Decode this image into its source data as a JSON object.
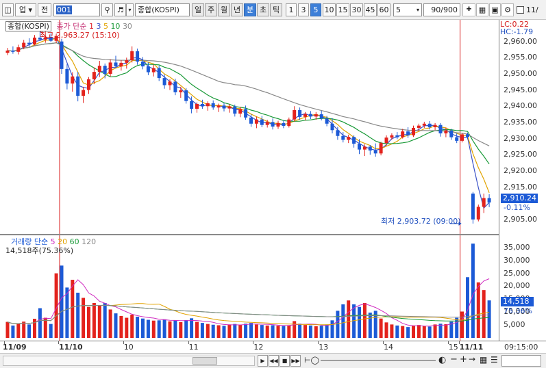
{
  "toolbar": {
    "market": "업",
    "prev_label": "전",
    "code": "001",
    "name": "종합(KOSPI)",
    "periods": [
      "일",
      "주",
      "월",
      "년",
      "분",
      "초",
      "틱"
    ],
    "selected_period": "분",
    "intervals": [
      "1",
      "3",
      "5",
      "10",
      "15",
      "30",
      "45",
      "60"
    ],
    "selected_interval": "5",
    "interval_select": "5",
    "count": "90/900",
    "checkbox_label": "11/"
  },
  "price_legend": {
    "name": "종합(KOSPI)",
    "ma_label": "종가 단순",
    "ma_periods": [
      "1",
      "3",
      "5",
      "10",
      "30"
    ],
    "ma_colors": [
      "#e0222a",
      "#3a51c8",
      "#e1a300",
      "#1a9a38",
      "#888888"
    ]
  },
  "price_annotations": {
    "high_text": "최고 2,963.27 (15:10)",
    "low_text": "최저 2,903.72 (09:00)",
    "lc": "LC:0.22",
    "hc": "HC:-1.79",
    "current_price": "2,910.24",
    "current_change": "-0.11%"
  },
  "volume_legend": {
    "label": "거래량 단순",
    "ma_periods": [
      "5",
      "20",
      "60",
      "120"
    ],
    "ma_colors": [
      "#d02bc0",
      "#e1a300",
      "#1a9a38",
      "#888888"
    ],
    "current_text": "14,518주(75.36%)"
  },
  "volume_annotations": {
    "current_value": "14,518",
    "current_pct": "75.36%"
  },
  "price_axis_labels": [
    "2,960.00",
    "2,955.00",
    "2,950.00",
    "2,945.00",
    "2,940.00",
    "2,935.00",
    "2,930.00",
    "2,925.00",
    "2,920.00",
    "2,915.00",
    "2,905.00"
  ],
  "volume_axis_labels": [
    "35,000",
    "30,000",
    "25,000",
    "20,000",
    "15,000",
    "10,000",
    "5,000"
  ],
  "x_axis": {
    "labels": [
      "11/09",
      "11/10",
      "10",
      "11",
      "12",
      "13",
      "14",
      "15",
      "11/11"
    ],
    "time": "09:15:00"
  },
  "colors": {
    "up": "#e3221c",
    "down": "#1c5ad6",
    "accent": "#3d7fd8",
    "marker_line": "#d81e1e"
  },
  "chart_data": {
    "type": "candlestick",
    "interval_minutes": 5,
    "y_price_range": [
      2903,
      2963
    ],
    "y_volume_range": [
      0,
      37000
    ],
    "dates": [
      "11/09",
      "11/10",
      "11/11"
    ],
    "candles": [
      [
        2956.5,
        2958.0,
        2955.8,
        2957.2,
        6200
      ],
      [
        2957.2,
        2958.5,
        2956.2,
        2956.8,
        4800
      ],
      [
        2956.8,
        2959.0,
        2956.0,
        2958.2,
        5600
      ],
      [
        2958.2,
        2960.5,
        2957.6,
        2959.6,
        6300
      ],
      [
        2959.6,
        2961.0,
        2958.4,
        2959.1,
        5200
      ],
      [
        2959.1,
        2962.0,
        2958.8,
        2961.2,
        7400
      ],
      [
        2961.2,
        2963.27,
        2960.2,
        2960.6,
        11500
      ],
      [
        2960.6,
        2961.8,
        2959.6,
        2961.3,
        7800
      ],
      [
        2961.3,
        2962.5,
        2959.8,
        2960.2,
        5400
      ],
      [
        2960.2,
        2962.4,
        2959.5,
        2961.7,
        25000
      ],
      [
        2960.0,
        2960.8,
        2950.0,
        2951.5,
        28000
      ],
      [
        2951.5,
        2953.0,
        2945.2,
        2947.0,
        19500
      ],
      [
        2947.0,
        2950.5,
        2944.5,
        2949.2,
        22500
      ],
      [
        2949.2,
        2950.6,
        2941.5,
        2943.2,
        17500
      ],
      [
        2943.2,
        2946.0,
        2941.0,
        2945.0,
        15500
      ],
      [
        2945.0,
        2949.0,
        2943.8,
        2948.3,
        12000
      ],
      [
        2948.3,
        2952.0,
        2946.8,
        2950.6,
        13500
      ],
      [
        2950.6,
        2954.0,
        2949.0,
        2952.5,
        12500
      ],
      [
        2952.5,
        2953.2,
        2948.6,
        2950.0,
        13500
      ],
      [
        2950.0,
        2954.5,
        2949.2,
        2953.5,
        11000
      ],
      [
        2953.5,
        2955.6,
        2951.8,
        2952.3,
        9500
      ],
      [
        2952.3,
        2954.2,
        2951.0,
        2953.4,
        8500
      ],
      [
        2953.4,
        2955.0,
        2951.6,
        2954.2,
        7800
      ],
      [
        2954.2,
        2958.5,
        2953.5,
        2957.0,
        9000
      ],
      [
        2957.0,
        2957.8,
        2952.8,
        2953.8,
        8200
      ],
      [
        2953.8,
        2955.2,
        2951.4,
        2952.3,
        7500
      ],
      [
        2952.3,
        2953.5,
        2949.6,
        2950.5,
        7000
      ],
      [
        2950.5,
        2952.8,
        2949.2,
        2951.8,
        6700
      ],
      [
        2951.8,
        2952.5,
        2947.8,
        2948.7,
        6800
      ],
      [
        2948.7,
        2949.8,
        2945.4,
        2946.5,
        7200
      ],
      [
        2946.5,
        2948.3,
        2945.0,
        2947.6,
        6400
      ],
      [
        2947.6,
        2948.5,
        2943.4,
        2944.3,
        6800
      ],
      [
        2944.3,
        2946.0,
        2942.6,
        2944.9,
        6100
      ],
      [
        2944.9,
        2945.6,
        2940.8,
        2941.6,
        6900
      ],
      [
        2941.6,
        2943.0,
        2937.8,
        2939.2,
        7600
      ],
      [
        2939.2,
        2941.2,
        2938.0,
        2940.7,
        6200
      ],
      [
        2940.7,
        2942.0,
        2939.2,
        2940.0,
        5800
      ],
      [
        2940.0,
        2941.5,
        2938.6,
        2940.9,
        5400
      ],
      [
        2940.9,
        2941.8,
        2938.9,
        2939.6,
        5100
      ],
      [
        2939.6,
        2940.8,
        2938.2,
        2940.2,
        4900
      ],
      [
        2940.2,
        2941.0,
        2938.4,
        2939.3,
        4700
      ],
      [
        2939.3,
        2940.6,
        2938.0,
        2939.9,
        5200
      ],
      [
        2939.9,
        2940.5,
        2936.8,
        2937.7,
        5400
      ],
      [
        2937.7,
        2939.8,
        2936.6,
        2939.1,
        5000
      ],
      [
        2939.1,
        2940.2,
        2935.8,
        2936.5,
        5500
      ],
      [
        2936.5,
        2937.5,
        2933.6,
        2934.6,
        5800
      ],
      [
        2934.6,
        2936.8,
        2933.2,
        2935.9,
        5200
      ],
      [
        2935.9,
        2937.0,
        2933.5,
        2934.2,
        5000
      ],
      [
        2934.2,
        2935.8,
        2933.4,
        2935.1,
        4800
      ],
      [
        2935.1,
        2936.2,
        2932.8,
        2933.7,
        4900
      ],
      [
        2933.7,
        2935.5,
        2933.0,
        2934.8,
        4700
      ],
      [
        2934.8,
        2935.6,
        2933.2,
        2933.9,
        4600
      ],
      [
        2933.9,
        2936.5,
        2933.4,
        2935.9,
        4900
      ],
      [
        2935.9,
        2940.0,
        2935.2,
        2938.8,
        6500
      ],
      [
        2938.8,
        2939.6,
        2935.8,
        2936.7,
        5500
      ],
      [
        2936.7,
        2938.2,
        2935.6,
        2937.6,
        5000
      ],
      [
        2937.6,
        2938.5,
        2936.0,
        2936.8,
        4800
      ],
      [
        2936.8,
        2938.2,
        2935.8,
        2937.5,
        4500
      ],
      [
        2937.5,
        2938.6,
        2935.6,
        2936.2,
        4700
      ],
      [
        2936.2,
        2937.0,
        2933.8,
        2934.6,
        5200
      ],
      [
        2934.6,
        2936.3,
        2931.6,
        2932.6,
        6800
      ],
      [
        2932.6,
        2933.6,
        2929.6,
        2930.8,
        10500
      ],
      [
        2930.8,
        2932.0,
        2928.8,
        2929.6,
        13000
      ],
      [
        2929.6,
        2931.2,
        2928.6,
        2930.5,
        14500
      ],
      [
        2930.5,
        2931.0,
        2927.2,
        2928.4,
        13000
      ],
      [
        2928.4,
        2929.8,
        2925.2,
        2926.6,
        12000
      ],
      [
        2926.6,
        2928.2,
        2924.6,
        2927.5,
        13500
      ],
      [
        2927.5,
        2928.0,
        2925.0,
        2926.3,
        9800
      ],
      [
        2926.3,
        2928.5,
        2924.4,
        2925.4,
        10500
      ],
      [
        2925.4,
        2929.0,
        2924.8,
        2928.6,
        7500
      ],
      [
        2928.6,
        2931.0,
        2927.8,
        2930.3,
        6000
      ],
      [
        2930.3,
        2931.6,
        2929.6,
        2931.0,
        5200
      ],
      [
        2931.0,
        2932.0,
        2929.8,
        2930.4,
        4800
      ],
      [
        2930.4,
        2933.0,
        2930.0,
        2932.2,
        4600
      ],
      [
        2932.2,
        2933.5,
        2930.2,
        2931.0,
        4200
      ],
      [
        2931.0,
        2934.0,
        2930.5,
        2933.3,
        4800
      ],
      [
        2933.3,
        2934.6,
        2932.4,
        2934.0,
        5000
      ],
      [
        2934.0,
        2935.2,
        2933.3,
        2934.6,
        4500
      ],
      [
        2934.6,
        2935.4,
        2932.8,
        2933.5,
        4400
      ],
      [
        2933.5,
        2934.8,
        2932.6,
        2934.2,
        5200
      ],
      [
        2934.2,
        2934.8,
        2930.6,
        2931.6,
        5500
      ],
      [
        2931.6,
        2933.4,
        2930.4,
        2932.5,
        5300
      ],
      [
        2932.5,
        2933.0,
        2929.6,
        2930.4,
        6300
      ],
      [
        2930.4,
        2931.6,
        2928.6,
        2929.3,
        7800
      ],
      [
        2929.3,
        2931.8,
        2928.8,
        2931.3,
        10200
      ],
      [
        2931.3,
        2931.8,
        2929.8,
        2930.5,
        23500
      ],
      [
        2913.0,
        2913.5,
        2903.72,
        2905.0,
        36500
      ],
      [
        2905.0,
        2909.6,
        2904.4,
        2908.9,
        21500
      ],
      [
        2908.9,
        2913.0,
        2907.0,
        2911.6,
        18500
      ],
      [
        2911.6,
        2912.8,
        2908.8,
        2910.24,
        14518
      ]
    ]
  }
}
